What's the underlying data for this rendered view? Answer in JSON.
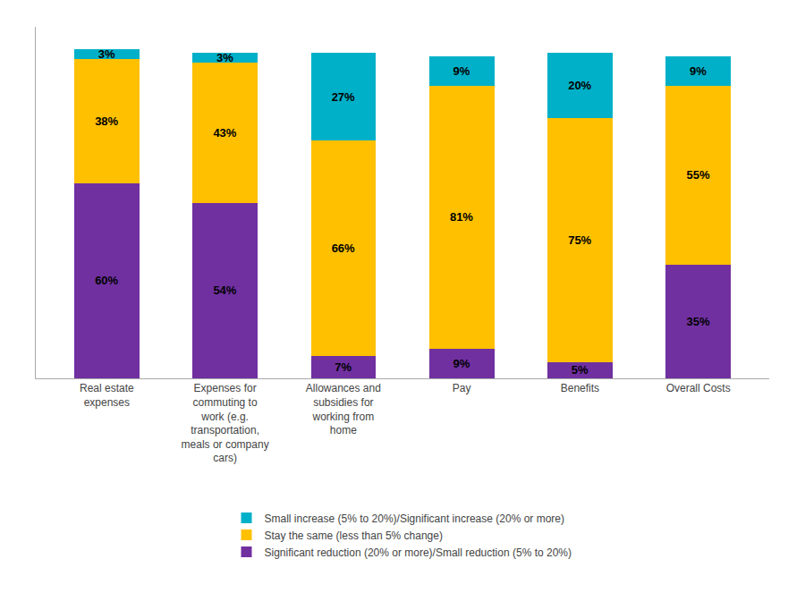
{
  "chart_data": {
    "type": "bar",
    "stacked": true,
    "categories": [
      "Real estate\nexpenses",
      "Expenses for\ncommuting to\nwork (e.g.\ntransportation,\nmeals or company\ncars)",
      "Allowances and\nsubsidies for\nworking from\nhome",
      "Pay",
      "Benefits",
      "Overall Costs"
    ],
    "series": [
      {
        "name": "Significant reduction (20% or more)/Small reduction (5% to 20%)",
        "color": "#7030A0",
        "values": [
          60,
          54,
          7,
          9,
          5,
          35
        ],
        "value_labels": [
          "60%",
          "54%",
          "7%",
          "9%",
          "5%",
          "35%"
        ]
      },
      {
        "name": "Stay the same (less than 5% change)",
        "color": "#FFC000",
        "values": [
          38,
          43,
          66,
          81,
          75,
          55
        ],
        "value_labels": [
          "38%",
          "43%",
          "66%",
          "81%",
          "75%",
          "55%"
        ]
      },
      {
        "name": "Small increase (5% to 20%)/Significant increase (20% or more)",
        "color": "#00B0C8",
        "values": [
          3,
          3,
          27,
          9,
          20,
          9
        ],
        "value_labels": [
          "3%",
          "3%",
          "27%",
          "9%",
          "20%",
          "9%"
        ]
      }
    ],
    "ylim": [
      0,
      108
    ],
    "grid": false,
    "legend": "bottom",
    "data_labels": true,
    "tick_labels": "x"
  }
}
